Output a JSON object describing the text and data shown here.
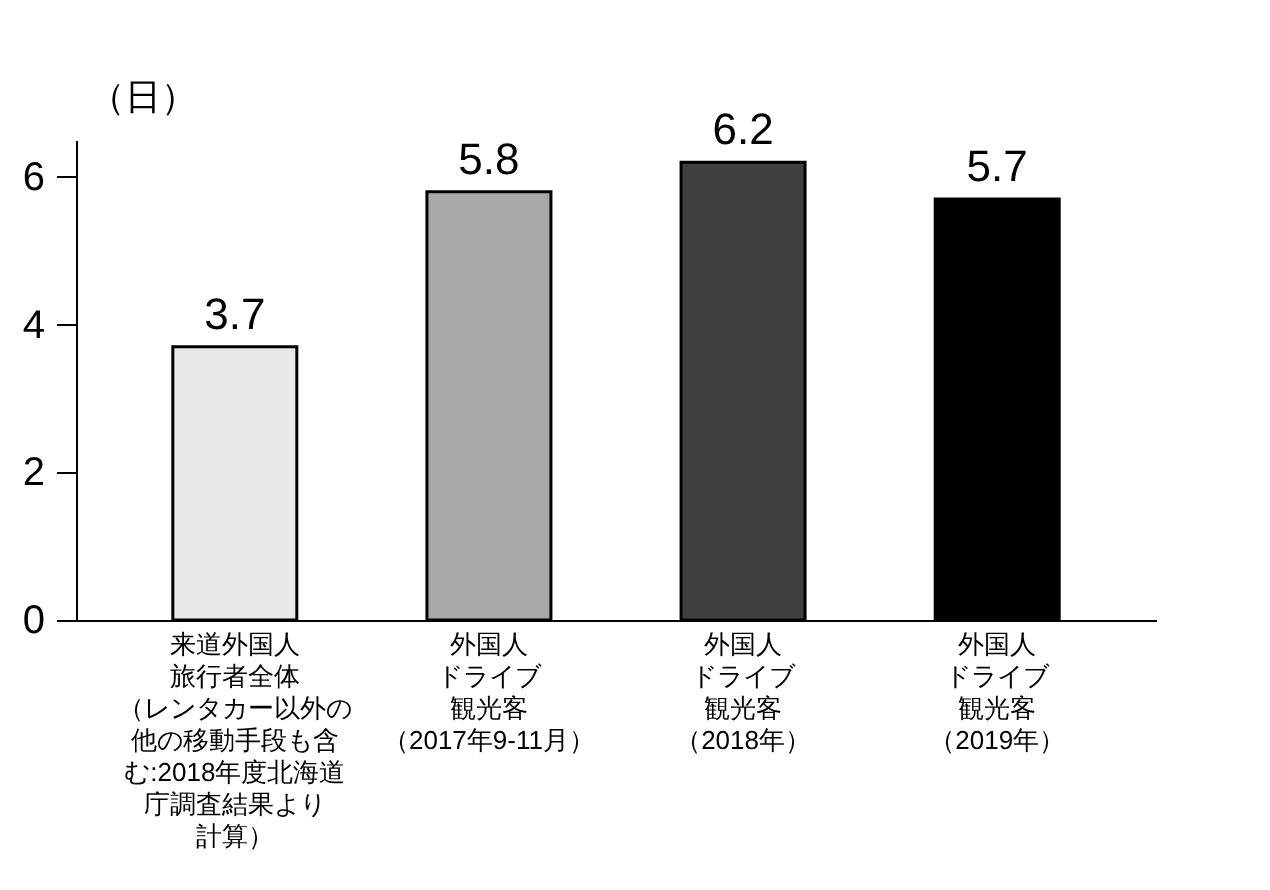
{
  "chart_data": {
    "type": "bar",
    "ylabel": "（日）",
    "categories": [
      "来道外国人旅行者全体（レンタカー以外の他の移動手段も含む:2018年度北海道庁調査結果より計算）",
      "外国人ドライブ観光客（2017年9-11月）",
      "外国人ドライブ観光客（2018年）",
      "外国人ドライブ観光客（2019年）"
    ],
    "values": [
      3.7,
      5.8,
      6.2,
      5.7
    ],
    "colors": [
      "#e8e8e8",
      "#a9a9a9",
      "#404040",
      "#000000"
    ],
    "ylim": [
      0,
      6.5
    ],
    "yticks": [
      0,
      2,
      4,
      6
    ],
    "grid": false,
    "data_labels": true
  }
}
